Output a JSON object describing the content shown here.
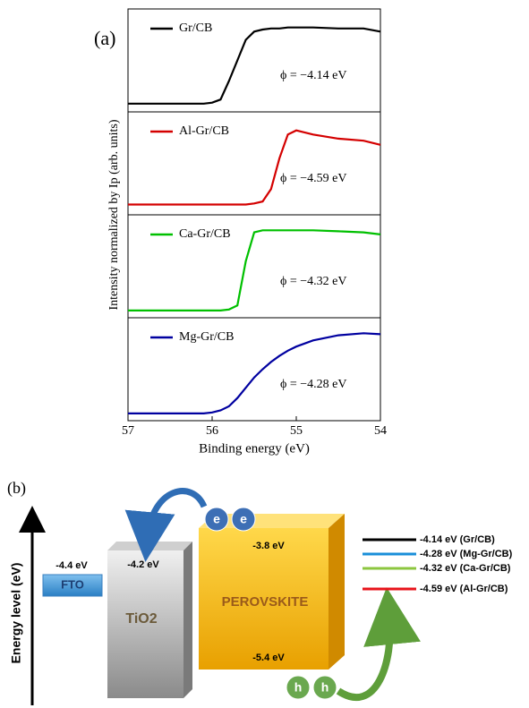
{
  "chart_data": {
    "type": "line",
    "panel_label": "(a)",
    "xlabel": "Binding energy (eV)",
    "ylabel": "Intensity normalized by Ip (arb. units)",
    "x": [
      57,
      56.5,
      56.2,
      56.1,
      56.0,
      55.9,
      55.8,
      55.7,
      55.6,
      55.5,
      55.4,
      55.3,
      55.2,
      55.1,
      55.0,
      54.8,
      54.5,
      54.2,
      54
    ],
    "xlim": [
      57,
      54
    ],
    "xticks": [
      57,
      56,
      55,
      54
    ],
    "ylim": [
      0,
      1
    ],
    "series": [
      {
        "name": "Gr/CB",
        "color": "#000000",
        "annotation": "ϕ = −4.14 eV",
        "values": [
          0.08,
          0.08,
          0.08,
          0.08,
          0.09,
          0.12,
          0.3,
          0.5,
          0.7,
          0.78,
          0.8,
          0.81,
          0.81,
          0.82,
          0.82,
          0.82,
          0.81,
          0.81,
          0.78
        ]
      },
      {
        "name": "Al-Gr/CB",
        "color": "#d40000",
        "annotation": "ϕ = −4.59 eV",
        "values": [
          0.1,
          0.1,
          0.1,
          0.1,
          0.1,
          0.1,
          0.1,
          0.1,
          0.1,
          0.11,
          0.13,
          0.25,
          0.55,
          0.78,
          0.82,
          0.78,
          0.74,
          0.72,
          0.68
        ]
      },
      {
        "name": "Ca-Gr/CB",
        "color": "#00c000",
        "annotation": "ϕ = −4.32 eV",
        "values": [
          0.07,
          0.07,
          0.07,
          0.07,
          0.07,
          0.07,
          0.08,
          0.12,
          0.55,
          0.83,
          0.85,
          0.85,
          0.85,
          0.85,
          0.85,
          0.85,
          0.84,
          0.83,
          0.81
        ]
      },
      {
        "name": "Mg-Gr/CB",
        "color": "#0000a0",
        "annotation": "ϕ = −4.28 eV",
        "values": [
          0.07,
          0.07,
          0.07,
          0.07,
          0.08,
          0.1,
          0.14,
          0.22,
          0.32,
          0.42,
          0.5,
          0.57,
          0.63,
          0.68,
          0.72,
          0.78,
          0.83,
          0.85,
          0.84
        ]
      }
    ]
  },
  "diagram": {
    "panel_label": "(b)",
    "axis_label": "Energy level (eV)",
    "fto": {
      "name": "FTO",
      "level": "-4.4 eV"
    },
    "tio2": {
      "name": "TiO2",
      "level": "-4.2 eV"
    },
    "perovskite": {
      "name": "PEROVSKITE",
      "top_level": "-3.8 eV",
      "bottom_level": "-5.4 eV"
    },
    "electrons": [
      "e",
      "e"
    ],
    "holes": [
      "h",
      "h"
    ],
    "levels": [
      {
        "label": "-4.14 eV (Gr/CB)",
        "color": "#000000"
      },
      {
        "label": "-4.28 eV (Mg-Gr/CB)",
        "color": "#1a8fd9"
      },
      {
        "label": "-4.32 eV (Ca-Gr/CB)",
        "color": "#8cc63f"
      },
      {
        "label": "-4.59 eV (Al-Gr/CB)",
        "color": "#e8141b"
      }
    ]
  }
}
